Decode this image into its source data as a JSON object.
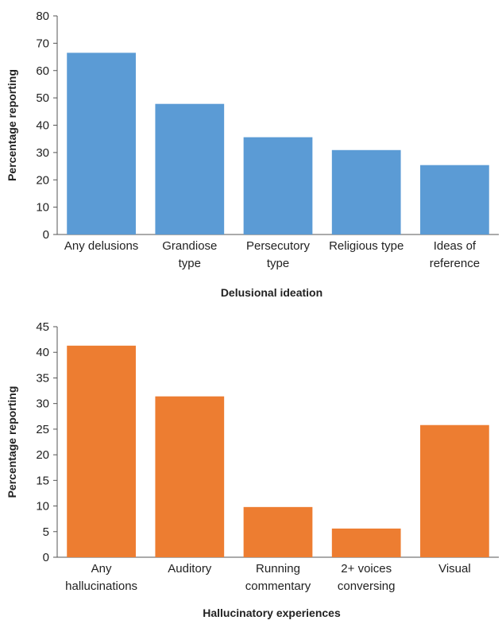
{
  "chart_data": [
    {
      "type": "bar",
      "categories": [
        [
          "Any delusions"
        ],
        [
          "Grandiose",
          "type"
        ],
        [
          "Persecutory",
          "type"
        ],
        [
          "Religious type"
        ],
        [
          "Ideas of",
          "reference"
        ]
      ],
      "values": [
        66.5,
        47.8,
        35.6,
        30.9,
        25.4
      ],
      "xlabel": "Delusional ideation",
      "ylabel": "Percentage reporting",
      "ylim": [
        0,
        80
      ],
      "yticks": [
        0,
        10,
        20,
        30,
        40,
        50,
        60,
        70,
        80
      ],
      "color": "#5B9BD5",
      "grid": false,
      "legend": "none"
    },
    {
      "type": "bar",
      "categories": [
        [
          "Any",
          "hallucinations"
        ],
        [
          "Auditory"
        ],
        [
          "Running",
          "commentary"
        ],
        [
          "2+ voices",
          "conversing"
        ],
        [
          "Visual"
        ]
      ],
      "values": [
        41.3,
        31.4,
        9.8,
        5.6,
        25.8
      ],
      "xlabel": "Hallucinatory experiences",
      "ylabel": "Percentage reporting",
      "ylim": [
        0,
        45
      ],
      "yticks": [
        0,
        5,
        10,
        15,
        20,
        25,
        30,
        35,
        40,
        45
      ],
      "color": "#ED7D31",
      "grid": false,
      "legend": "none"
    }
  ]
}
